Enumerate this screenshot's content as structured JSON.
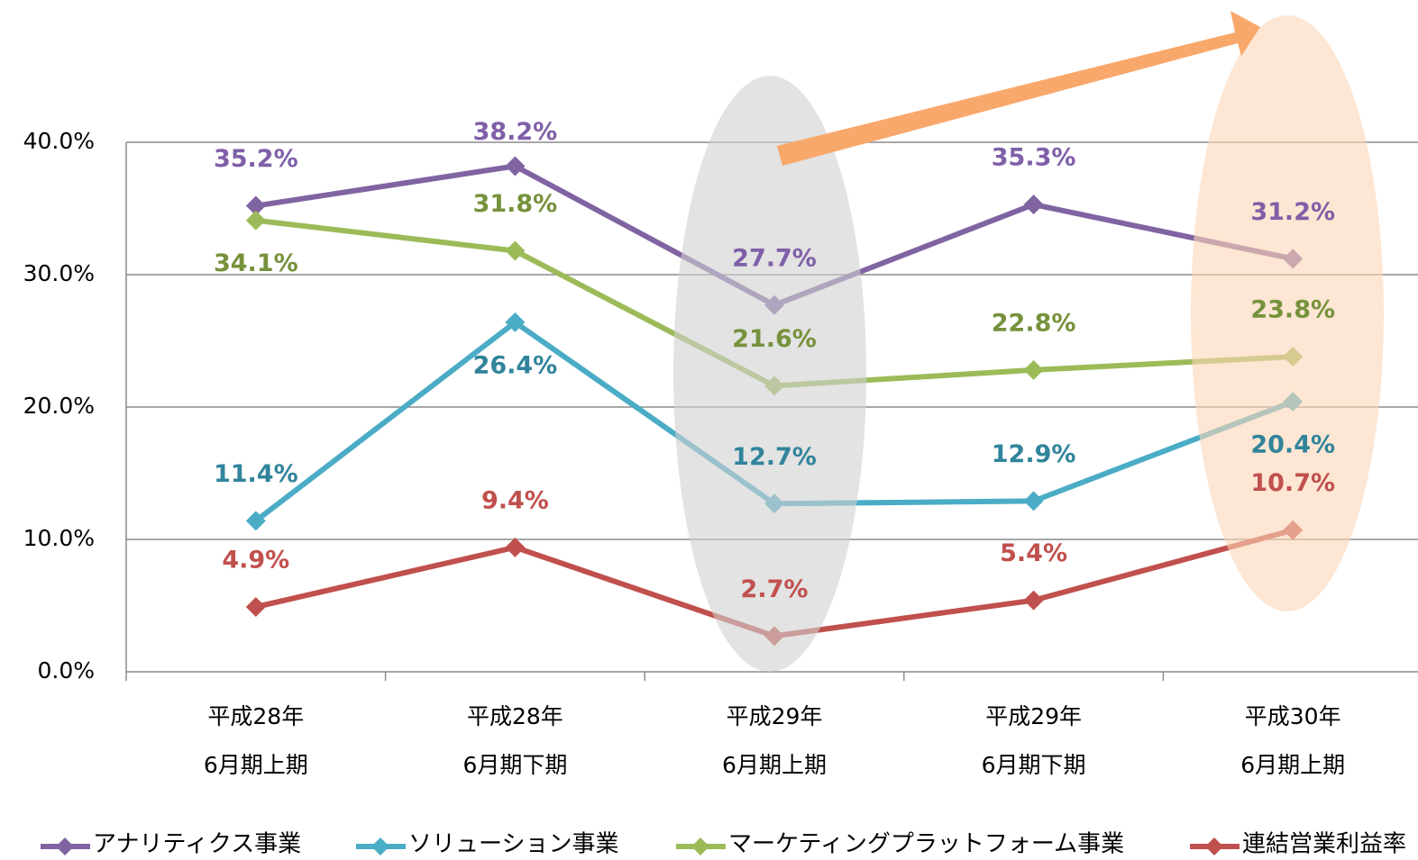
{
  "chart_data": {
    "type": "line",
    "categories": [
      [
        "平成28年",
        "6月期上期"
      ],
      [
        "平成28年",
        "6月期下期"
      ],
      [
        "平成29年",
        "6月期上期"
      ],
      [
        "平成29年",
        "6月期下期"
      ],
      [
        "平成30年",
        "6月期上期"
      ]
    ],
    "ylim": [
      0,
      40
    ],
    "yticks": [
      {
        "value": 0,
        "label": "0.0%"
      },
      {
        "value": 10,
        "label": "10.0%"
      },
      {
        "value": 20,
        "label": "20.0%"
      },
      {
        "value": 30,
        "label": "30.0%"
      },
      {
        "value": 40,
        "label": "40.0%"
      }
    ],
    "grid": true,
    "legend": "bottom",
    "series": [
      {
        "name": "アナリティクス事業",
        "color": "#8064a2",
        "label_color": "#7f5fa8",
        "values": [
          35.2,
          38.2,
          27.7,
          35.3,
          31.2
        ],
        "value_labels": [
          "35.2%",
          "38.2%",
          "27.7%",
          "35.3%",
          "31.2%"
        ]
      },
      {
        "name": "ソリューション事業",
        "color": "#4bacc6",
        "label_color": "#31849b",
        "values": [
          11.4,
          26.4,
          12.7,
          12.9,
          20.4
        ],
        "value_labels": [
          "11.4%",
          "26.4%",
          "12.7%",
          "12.9%",
          "20.4%"
        ]
      },
      {
        "name": "マーケティングプラットフォーム事業",
        "color": "#9bbb59",
        "label_color": "#76923c",
        "values": [
          34.1,
          31.8,
          21.6,
          22.8,
          23.8
        ],
        "value_labels": [
          "34.1%",
          "31.8%",
          "21.6%",
          "22.8%",
          "23.8%"
        ]
      },
      {
        "name": "連結営業利益率",
        "color": "#c0504d",
        "label_color": "#c0504d",
        "values": [
          4.9,
          9.4,
          2.7,
          5.4,
          10.7
        ],
        "value_labels": [
          "4.9%",
          "9.4%",
          "2.7%",
          "5.4%",
          "10.7%"
        ]
      }
    ]
  }
}
